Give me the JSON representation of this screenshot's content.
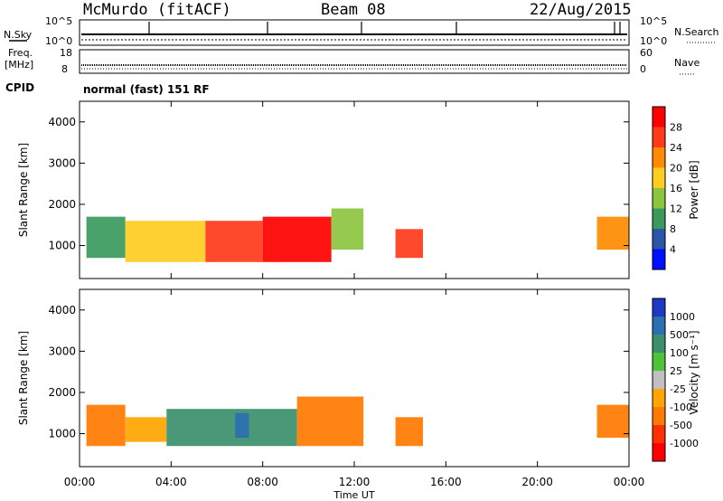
{
  "header": {
    "station": "McMurdo (fitACF)",
    "beam": "Beam 08",
    "date": "22/Aug/2015"
  },
  "top_panels": {
    "nsky_label": "N.Sky",
    "nsky_ticks": [
      "10^5",
      "10^0"
    ],
    "nsearch_label": "N.Search",
    "nsearch_ticks": [
      "10^5",
      "10^0"
    ],
    "freq_label": "Freq.",
    "freq_unit": "[MHz]",
    "freq_ticks": [
      "18",
      "8"
    ],
    "nave_label": "Nave",
    "nave_ticks": [
      "60",
      "0"
    ],
    "cpid_label": "CPID",
    "cpid_text": "normal (fast) 151 RF"
  },
  "power_colorbar": {
    "label": "Power [dB]",
    "ticks": [
      "28",
      "24",
      "20",
      "16",
      "12",
      "8",
      "4"
    ],
    "colors": [
      "#ff0000",
      "#ff3a1a",
      "#ff8a00",
      "#ffcc1f",
      "#8cc63f",
      "#3a9a5c",
      "#2a56a8",
      "#0010ff"
    ]
  },
  "velocity_colorbar": {
    "label": "Velocity [m s⁻¹]",
    "ticks": [
      "1000",
      "500",
      "100",
      "25",
      "-25",
      "-100",
      "-500",
      "-1000"
    ],
    "colors": [
      "#1d39c4",
      "#2a6fb0",
      "#3b8f6b",
      "#4cc43a",
      "#c0c0c0",
      "#ffa500",
      "#ff7a00",
      "#ff3000",
      "#ff0000"
    ]
  },
  "chart_data": [
    {
      "type": "heatmap",
      "title": "",
      "parameter": "Power",
      "ylabel": "Slant Range [km]",
      "xlabel": "",
      "y_ticks": [
        1000,
        2000,
        3000,
        4000
      ],
      "ylim": [
        200,
        4500
      ],
      "xlim": [
        0,
        24
      ],
      "echo_regions": [
        {
          "t_start": 0.3,
          "t_end": 2.0,
          "r_min": 700,
          "r_max": 1700,
          "power_dB": 10
        },
        {
          "t_start": 2.0,
          "t_end": 5.5,
          "r_min": 600,
          "r_max": 1600,
          "power_dB": 18
        },
        {
          "t_start": 5.5,
          "t_end": 8.0,
          "r_min": 600,
          "r_max": 1600,
          "power_dB": 24
        },
        {
          "t_start": 8.0,
          "t_end": 11.0,
          "r_min": 600,
          "r_max": 1700,
          "power_dB": 28
        },
        {
          "t_start": 11.0,
          "t_end": 12.4,
          "r_min": 900,
          "r_max": 1900,
          "power_dB": 12
        },
        {
          "t_start": 13.8,
          "t_end": 15.0,
          "r_min": 700,
          "r_max": 1400,
          "power_dB": 24
        },
        {
          "t_start": 22.6,
          "t_end": 24.0,
          "r_min": 900,
          "r_max": 1700,
          "power_dB": 20
        }
      ]
    },
    {
      "type": "heatmap",
      "title": "",
      "parameter": "Velocity",
      "ylabel": "Slant Range [km]",
      "xlabel": "Time UT",
      "x_ticks": [
        "00:00",
        "04:00",
        "08:00",
        "12:00",
        "16:00",
        "20:00",
        "00:00"
      ],
      "y_ticks": [
        1000,
        2000,
        3000,
        4000
      ],
      "ylim": [
        200,
        4500
      ],
      "xlim": [
        0,
        24
      ],
      "echo_regions": [
        {
          "t_start": 0.3,
          "t_end": 2.0,
          "r_min": 700,
          "r_max": 1700,
          "velocity": -300
        },
        {
          "t_start": 2.0,
          "t_end": 3.8,
          "r_min": 800,
          "r_max": 1400,
          "velocity": -100
        },
        {
          "t_start": 3.8,
          "t_end": 9.5,
          "r_min": 700,
          "r_max": 1600,
          "velocity": 100
        },
        {
          "t_start": 6.8,
          "t_end": 7.4,
          "r_min": 900,
          "r_max": 1500,
          "velocity": 700
        },
        {
          "t_start": 9.5,
          "t_end": 12.4,
          "r_min": 700,
          "r_max": 1900,
          "velocity": -300
        },
        {
          "t_start": 13.8,
          "t_end": 15.0,
          "r_min": 700,
          "r_max": 1400,
          "velocity": -300
        },
        {
          "t_start": 22.6,
          "t_end": 24.0,
          "r_min": 900,
          "r_max": 1700,
          "velocity": -300
        }
      ]
    }
  ]
}
